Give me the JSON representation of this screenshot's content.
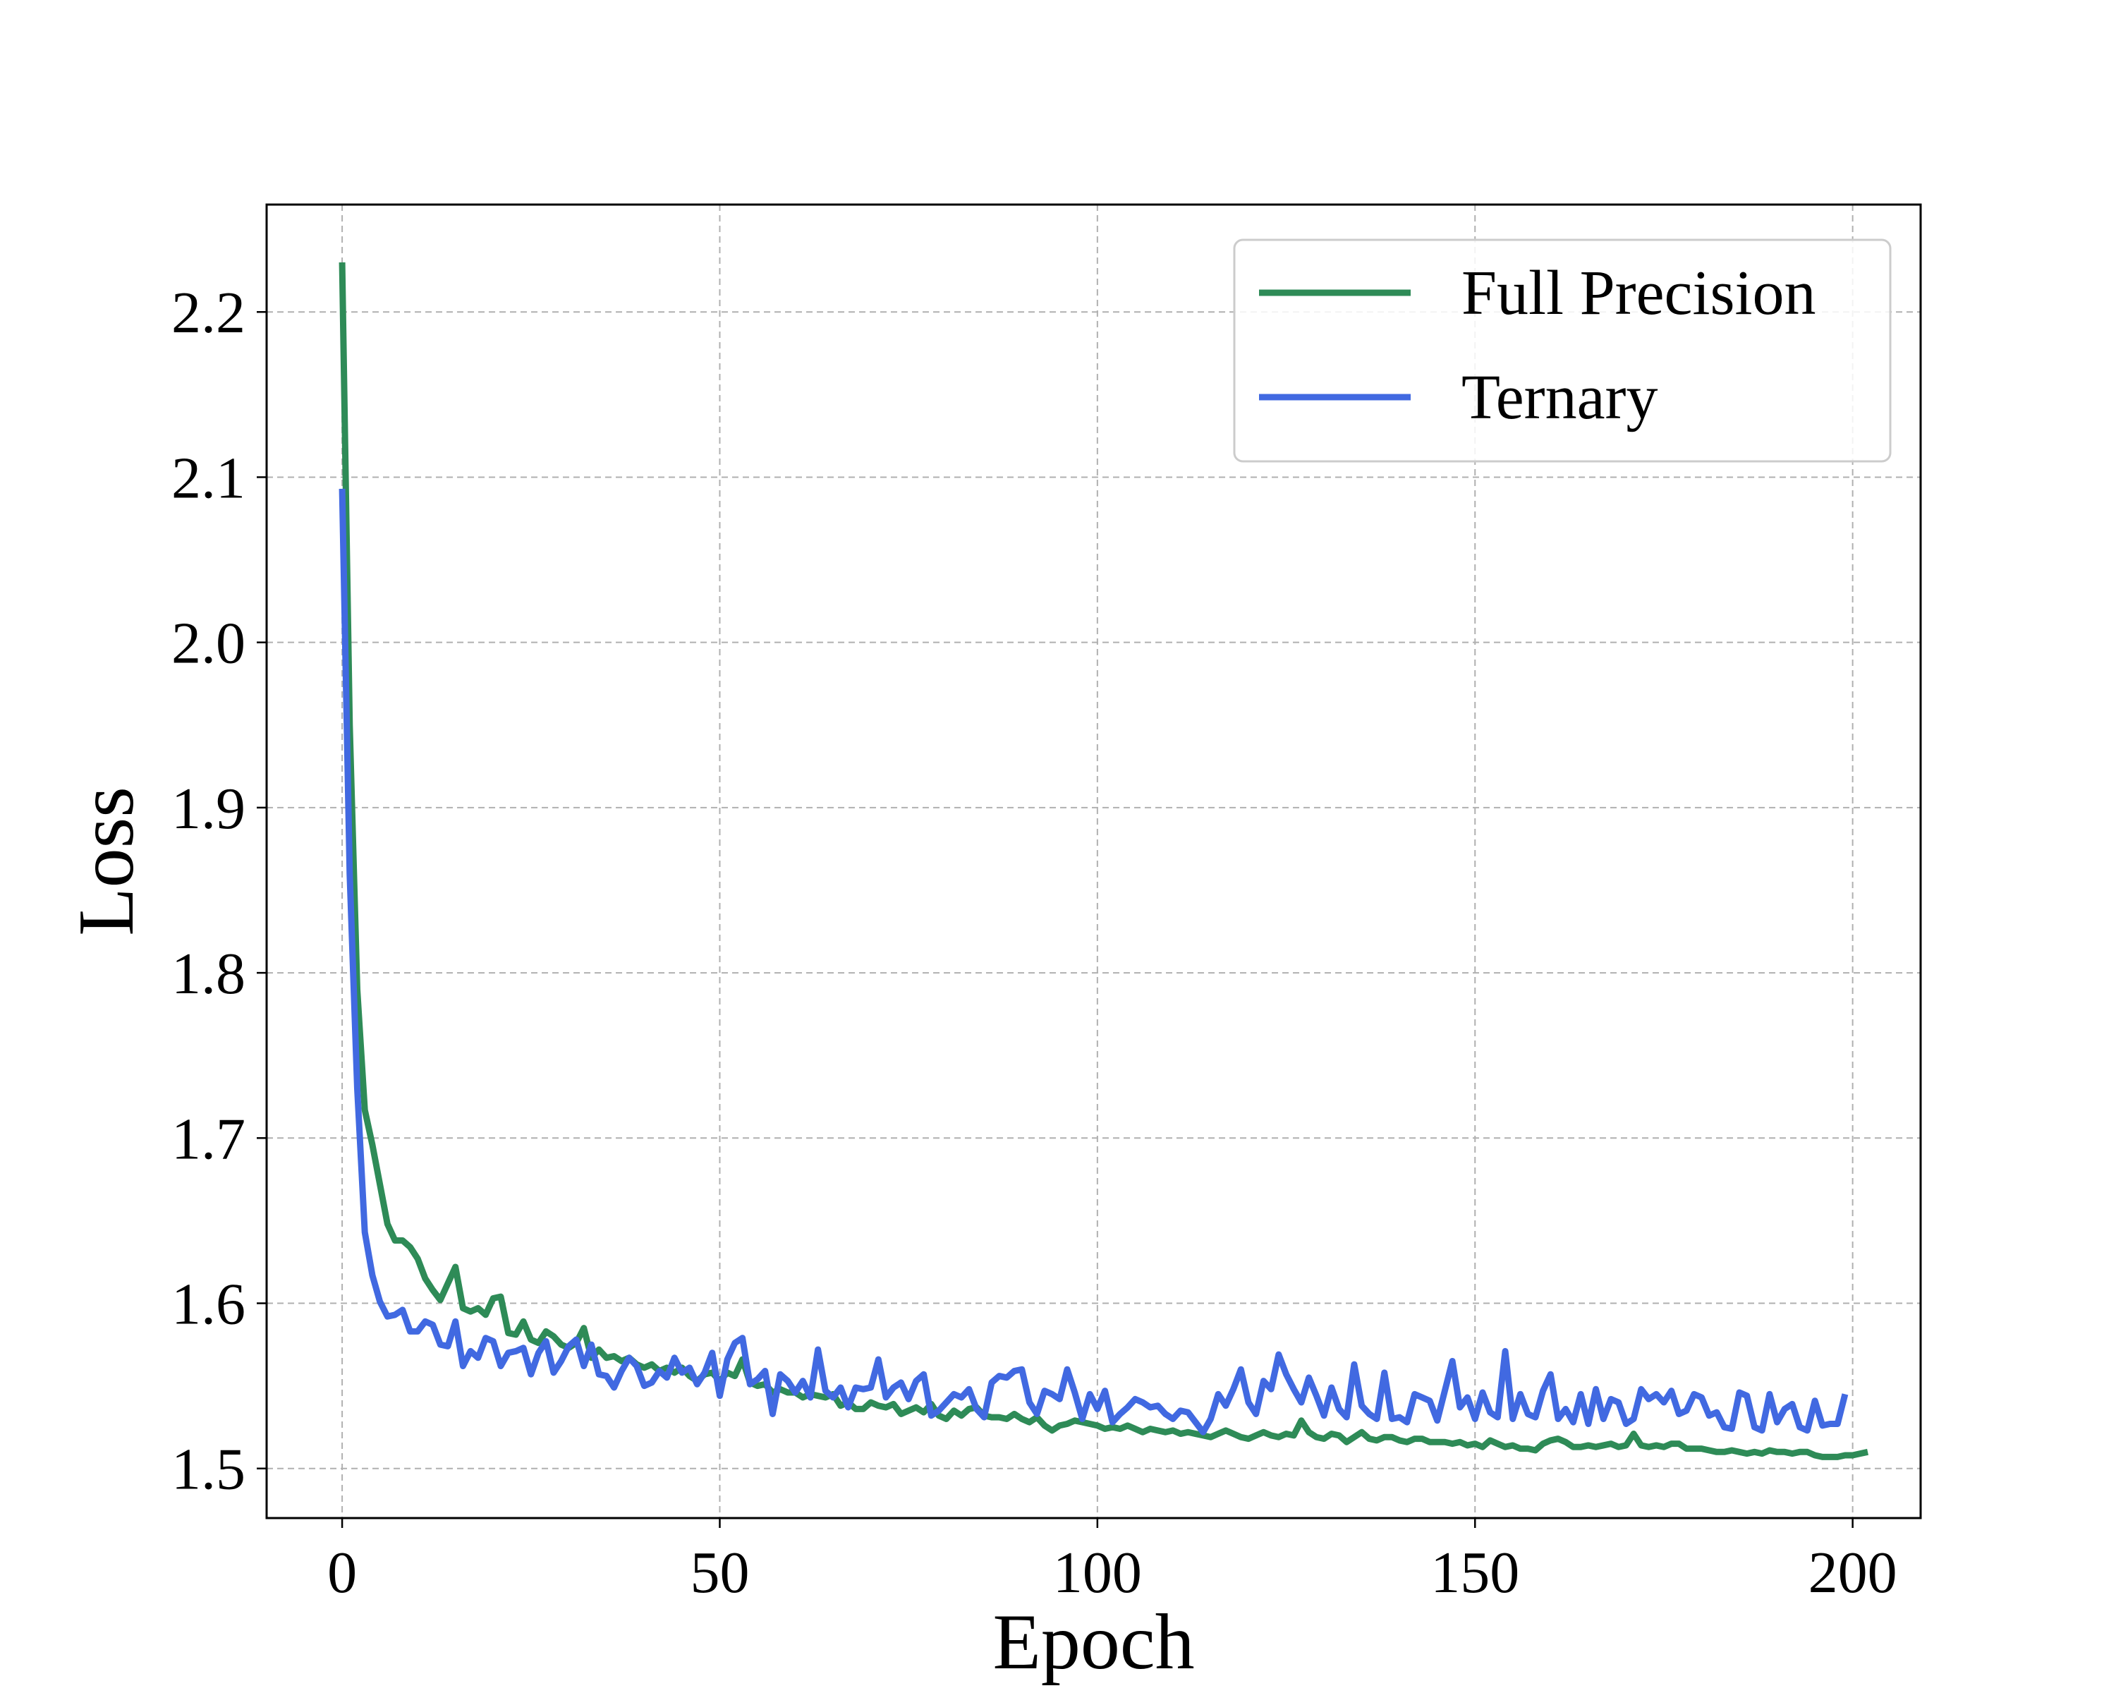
{
  "chart_data": {
    "type": "line",
    "title": "",
    "xlabel": "Epoch",
    "ylabel": "Loss",
    "xlim": [
      -10,
      209
    ],
    "ylim": [
      1.47,
      2.265
    ],
    "xticks": [
      0,
      50,
      100,
      150,
      200
    ],
    "yticks": [
      1.5,
      1.6,
      1.7,
      1.8,
      1.9,
      2.0,
      2.1,
      2.2
    ],
    "xtick_labels": [
      "0",
      "50",
      "100",
      "150",
      "200"
    ],
    "ytick_labels": [
      "1.5",
      "1.6",
      "1.7",
      "1.8",
      "1.9",
      "2.0",
      "2.1",
      "2.2"
    ],
    "grid": true,
    "legend": {
      "placement": "top-right"
    },
    "series": [
      {
        "name": "Full Precision",
        "color": "#2e8b57",
        "x_start": 0,
        "x_step": 1,
        "values": [
          2.23,
          1.95,
          1.79,
          1.717,
          1.696,
          1.672,
          1.648,
          1.638,
          1.638,
          1.634,
          1.627,
          1.615,
          1.608,
          1.602,
          1.612,
          1.622,
          1.597,
          1.595,
          1.597,
          1.593,
          1.603,
          1.604,
          1.582,
          1.581,
          1.589,
          1.578,
          1.576,
          1.583,
          1.58,
          1.575,
          1.573,
          1.576,
          1.585,
          1.567,
          1.572,
          1.567,
          1.568,
          1.565,
          1.567,
          1.563,
          1.561,
          1.563,
          1.559,
          1.561,
          1.558,
          1.561,
          1.556,
          1.553,
          1.557,
          1.558,
          1.553,
          1.558,
          1.556,
          1.566,
          1.552,
          1.55,
          1.551,
          1.546,
          1.548,
          1.546,
          1.546,
          1.543,
          1.545,
          1.544,
          1.543,
          1.545,
          1.538,
          1.54,
          1.536,
          1.536,
          1.54,
          1.538,
          1.537,
          1.539,
          1.533,
          1.535,
          1.537,
          1.534,
          1.539,
          1.532,
          1.53,
          1.535,
          1.532,
          1.536,
          1.537,
          1.532,
          1.531,
          1.531,
          1.53,
          1.533,
          1.53,
          1.528,
          1.531,
          1.526,
          1.523,
          1.526,
          1.527,
          1.529,
          1.528,
          1.527,
          1.526,
          1.524,
          1.525,
          1.524,
          1.526,
          1.524,
          1.522,
          1.524,
          1.523,
          1.522,
          1.523,
          1.521,
          1.522,
          1.521,
          1.52,
          1.519,
          1.521,
          1.523,
          1.521,
          1.519,
          1.518,
          1.52,
          1.522,
          1.52,
          1.519,
          1.521,
          1.52,
          1.529,
          1.522,
          1.519,
          1.518,
          1.521,
          1.52,
          1.516,
          1.519,
          1.522,
          1.518,
          1.517,
          1.519,
          1.519,
          1.517,
          1.516,
          1.518,
          1.518,
          1.516,
          1.516,
          1.516,
          1.515,
          1.516,
          1.514,
          1.515,
          1.513,
          1.517,
          1.515,
          1.513,
          1.514,
          1.512,
          1.512,
          1.511,
          1.515,
          1.517,
          1.518,
          1.516,
          1.513,
          1.513,
          1.514,
          1.513,
          1.514,
          1.515,
          1.513,
          1.514,
          1.521,
          1.514,
          1.513,
          1.514,
          1.513,
          1.515,
          1.515,
          1.512,
          1.512,
          1.512,
          1.511,
          1.51,
          1.51,
          1.511,
          1.51,
          1.509,
          1.51,
          1.509,
          1.511,
          1.51,
          1.51,
          1.509,
          1.51,
          1.51,
          1.508,
          1.507,
          1.507,
          1.507,
          1.508,
          1.508,
          1.509,
          1.51
        ]
      },
      {
        "name": "Ternary",
        "color": "#4169e1",
        "x_start": 0,
        "x_step": 1,
        "values": [
          2.093,
          1.86,
          1.73,
          1.643,
          1.617,
          1.601,
          1.592,
          1.593,
          1.596,
          1.583,
          1.583,
          1.589,
          1.587,
          1.575,
          1.574,
          1.589,
          1.562,
          1.571,
          1.567,
          1.579,
          1.577,
          1.562,
          1.57,
          1.571,
          1.573,
          1.557,
          1.57,
          1.577,
          1.558,
          1.565,
          1.574,
          1.578,
          1.562,
          1.575,
          1.557,
          1.556,
          1.549,
          1.559,
          1.567,
          1.562,
          1.55,
          1.552,
          1.559,
          1.555,
          1.567,
          1.558,
          1.561,
          1.551,
          1.558,
          1.57,
          1.544,
          1.566,
          1.576,
          1.579,
          1.551,
          1.554,
          1.559,
          1.533,
          1.557,
          1.553,
          1.546,
          1.553,
          1.543,
          1.572,
          1.547,
          1.543,
          1.549,
          1.537,
          1.549,
          1.548,
          1.549,
          1.566,
          1.543,
          1.549,
          1.552,
          1.542,
          1.553,
          1.557,
          1.532,
          1.535,
          1.54,
          1.545,
          1.543,
          1.548,
          1.536,
          1.531,
          1.552,
          1.556,
          1.555,
          1.559,
          1.56,
          1.54,
          1.533,
          1.547,
          1.545,
          1.542,
          1.56,
          1.546,
          1.53,
          1.545,
          1.536,
          1.547,
          1.528,
          1.533,
          1.537,
          1.542,
          1.54,
          1.537,
          1.538,
          1.533,
          1.53,
          1.535,
          1.534,
          1.528,
          1.522,
          1.53,
          1.545,
          1.538,
          1.548,
          1.56,
          1.54,
          1.533,
          1.553,
          1.548,
          1.569,
          1.557,
          1.548,
          1.54,
          1.555,
          1.544,
          1.532,
          1.549,
          1.536,
          1.531,
          1.563,
          1.538,
          1.533,
          1.53,
          1.558,
          1.53,
          1.531,
          1.528,
          1.545,
          1.543,
          1.541,
          1.529,
          1.547,
          1.565,
          1.537,
          1.543,
          1.53,
          1.546,
          1.534,
          1.531,
          1.571,
          1.53,
          1.545,
          1.533,
          1.531,
          1.547,
          1.557,
          1.53,
          1.536,
          1.528,
          1.545,
          1.527,
          1.548,
          1.53,
          1.542,
          1.54,
          1.527,
          1.53,
          1.548,
          1.542,
          1.545,
          1.54,
          1.547,
          1.533,
          1.535,
          1.545,
          1.543,
          1.532,
          1.534,
          1.525,
          1.524,
          1.546,
          1.544,
          1.525,
          1.523,
          1.545,
          1.528,
          1.536,
          1.539,
          1.525,
          1.523,
          1.541,
          1.526,
          1.527,
          1.527,
          1.545
        ]
      }
    ]
  }
}
